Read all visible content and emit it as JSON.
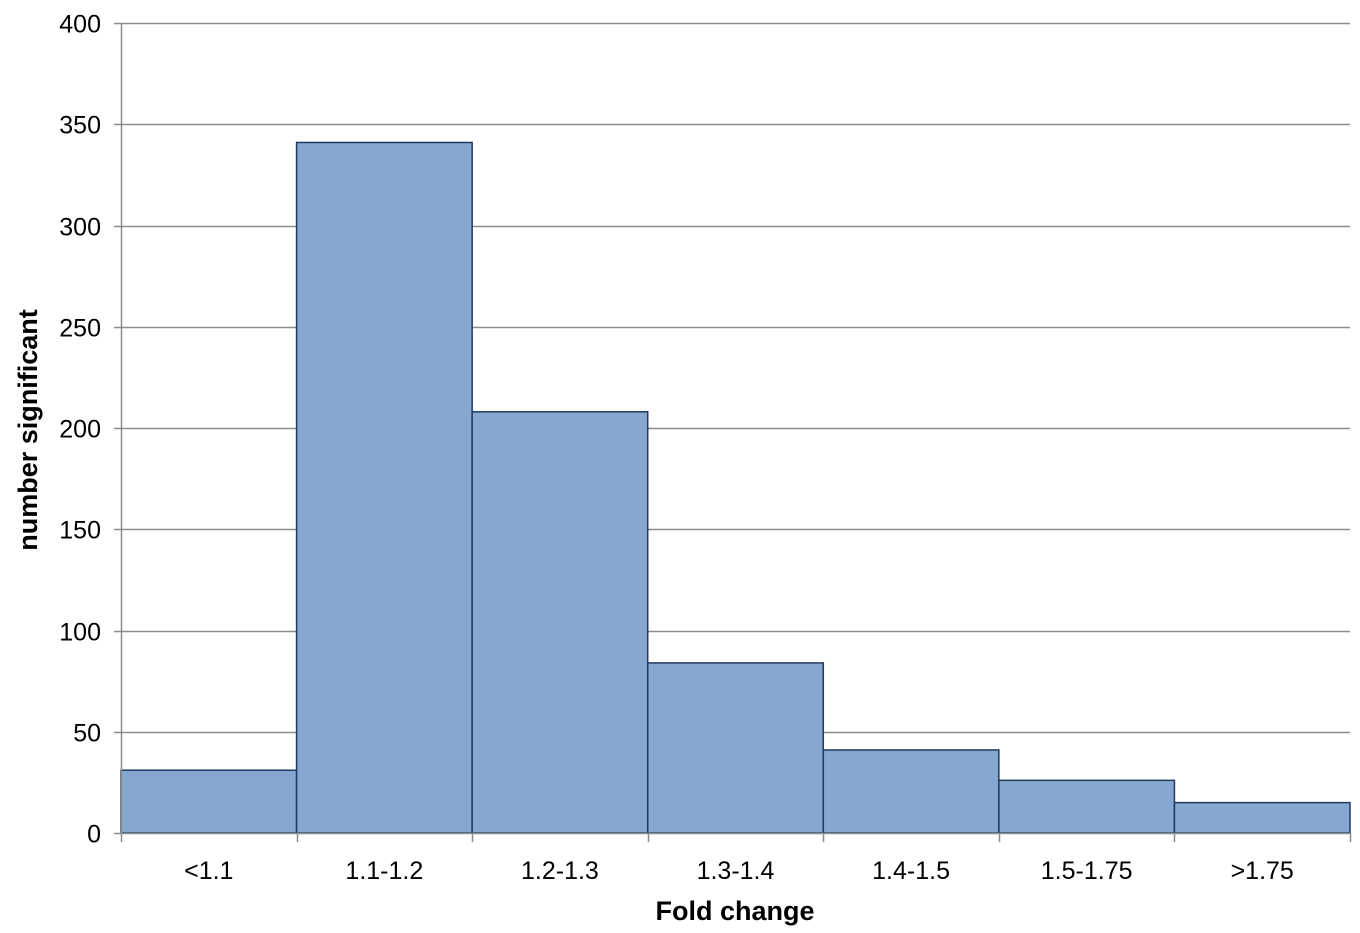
{
  "chart_data": {
    "type": "bar",
    "title": "",
    "xlabel": "Fold change",
    "ylabel": "number significant",
    "categories": [
      "<1.1",
      "1.1-1.2",
      "1.2-1.3",
      "1.3-1.4",
      "1.4-1.5",
      "1.5-1.75",
      ">1.75"
    ],
    "values": [
      31,
      341,
      208,
      84,
      41,
      26,
      15
    ],
    "ylim": [
      0,
      400
    ],
    "yticks": [
      0,
      50,
      100,
      150,
      200,
      250,
      300,
      350,
      400
    ],
    "grid": true,
    "legend": "none",
    "bar_color": "#86a8d0",
    "bar_edge_color": "#1f3a5f",
    "grid_color": "#8c8c8c"
  }
}
